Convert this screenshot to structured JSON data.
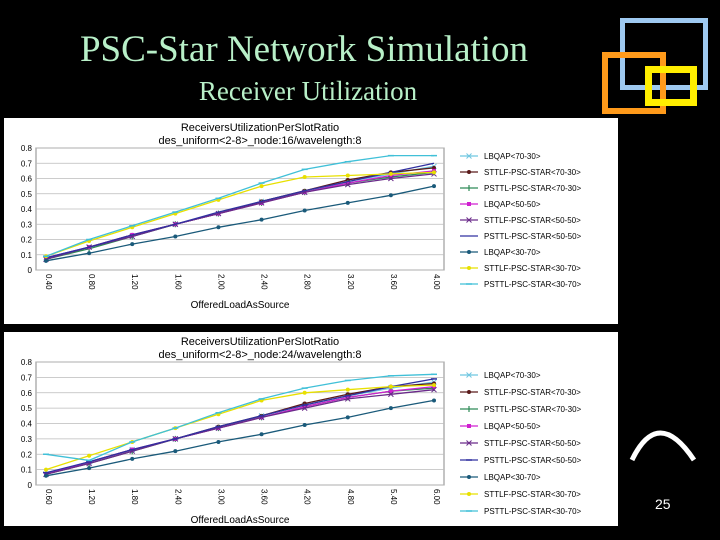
{
  "slide": {
    "title": "PSC-Star Network Simulation",
    "subtitle": "Receiver Utilization",
    "page_number": "25",
    "colors": {
      "background": "#000000",
      "title": "#b8f0c8",
      "deco_blue": "#9ec9f0",
      "deco_orange": "#ff9a1a",
      "deco_yellow": "#ffee00"
    }
  },
  "chart_data": [
    {
      "type": "line",
      "title": "ReceiversUtilizationPerSlotRatio",
      "subtitle": "des_uniform<2-8>_node:16/wavelength:8",
      "xlabel": "OfferedLoadAsSource",
      "ylabel": "",
      "x": [
        "0.40",
        "0.80",
        "1.20",
        "1.60",
        "2.00",
        "2.40",
        "2.80",
        "3.20",
        "3.60",
        "4.00"
      ],
      "ylim": [
        0,
        0.8
      ],
      "yticks": [
        "0",
        "0.1",
        "0.2",
        "0.3",
        "0.4",
        "0.5",
        "0.6",
        "0.7",
        "0.8"
      ],
      "grid": true,
      "legend": "right",
      "series": [
        {
          "name": "LBQAP<70-30>",
          "color": "#6ec6e0",
          "marker": "x",
          "values": [
            0.08,
            0.15,
            0.22,
            0.3,
            0.37,
            0.45,
            0.51,
            0.58,
            0.63,
            0.68
          ]
        },
        {
          "name": "STTLF-PSC-STAR<70-30>",
          "color": "#5a1a1a",
          "marker": "dot",
          "values": [
            0.07,
            0.15,
            0.23,
            0.3,
            0.37,
            0.45,
            0.52,
            0.59,
            0.64,
            0.67
          ]
        },
        {
          "name": "PSTTL-PSC-STAR<70-30>",
          "color": "#2e8b57",
          "marker": "bar",
          "values": [
            0.07,
            0.14,
            0.22,
            0.3,
            0.37,
            0.44,
            0.51,
            0.57,
            0.61,
            0.64
          ]
        },
        {
          "name": "LBQAP<50-50>",
          "color": "#d020d0",
          "marker": "square",
          "values": [
            0.08,
            0.15,
            0.23,
            0.3,
            0.37,
            0.44,
            0.51,
            0.57,
            0.62,
            0.65
          ]
        },
        {
          "name": "STTLF-PSC-STAR<50-50>",
          "color": "#6a2a8a",
          "marker": "x",
          "values": [
            0.07,
            0.15,
            0.22,
            0.3,
            0.37,
            0.44,
            0.51,
            0.56,
            0.6,
            0.63
          ]
        },
        {
          "name": "PSTTL-PSC-STAR<50-50>",
          "color": "#3030a0",
          "marker": "none",
          "values": [
            0.08,
            0.15,
            0.23,
            0.3,
            0.38,
            0.45,
            0.52,
            0.58,
            0.64,
            0.7
          ]
        },
        {
          "name": "LBQAP<30-70>",
          "color": "#1a5a7a",
          "marker": "dot",
          "values": [
            0.06,
            0.11,
            0.17,
            0.22,
            0.28,
            0.33,
            0.39,
            0.44,
            0.49,
            0.55
          ]
        },
        {
          "name": "STTLF-PSC-STAR<30-70>",
          "color": "#e8e000",
          "marker": "dot",
          "values": [
            0.09,
            0.19,
            0.28,
            0.37,
            0.46,
            0.55,
            0.61,
            0.62,
            0.63,
            0.64
          ]
        },
        {
          "name": "PSTTL-PSC-STAR<30-70>",
          "color": "#40c0d8",
          "marker": "dash",
          "values": [
            0.09,
            0.2,
            0.29,
            0.38,
            0.47,
            0.57,
            0.66,
            0.71,
            0.75,
            0.75
          ]
        }
      ]
    },
    {
      "type": "line",
      "title": "ReceiversUtilizationPerSlotRatio",
      "subtitle": "des_uniform<2-8>_node:24/wavelength:8",
      "xlabel": "OfferedLoadAsSource",
      "ylabel": "",
      "x": [
        "0.60",
        "1.20",
        "1.80",
        "2.40",
        "3.00",
        "3.60",
        "4.20",
        "4.80",
        "5.40",
        "6.00"
      ],
      "ylim": [
        0,
        0.8
      ],
      "yticks": [
        "0",
        "0.1",
        "0.2",
        "0.3",
        "0.4",
        "0.5",
        "0.6",
        "0.7",
        "0.8"
      ],
      "grid": true,
      "legend": "right",
      "series": [
        {
          "name": "LBQAP<70-30>",
          "color": "#6ec6e0",
          "marker": "x",
          "values": [
            0.07,
            0.15,
            0.23,
            0.3,
            0.37,
            0.45,
            0.52,
            0.58,
            0.63,
            0.67
          ]
        },
        {
          "name": "STTLF-PSC-STAR<70-30>",
          "color": "#5a1a1a",
          "marker": "dot",
          "values": [
            0.07,
            0.15,
            0.23,
            0.3,
            0.38,
            0.45,
            0.53,
            0.59,
            0.64,
            0.66
          ]
        },
        {
          "name": "PSTTL-PSC-STAR<70-30>",
          "color": "#2e8b57",
          "marker": "bar",
          "values": [
            0.07,
            0.14,
            0.22,
            0.3,
            0.37,
            0.44,
            0.51,
            0.57,
            0.61,
            0.63
          ]
        },
        {
          "name": "LBQAP<50-50>",
          "color": "#d020d0",
          "marker": "square",
          "values": [
            0.07,
            0.15,
            0.23,
            0.3,
            0.37,
            0.44,
            0.51,
            0.57,
            0.61,
            0.64
          ]
        },
        {
          "name": "STTLF-PSC-STAR<50-50>",
          "color": "#6a2a8a",
          "marker": "x",
          "values": [
            0.07,
            0.14,
            0.22,
            0.3,
            0.37,
            0.44,
            0.5,
            0.56,
            0.59,
            0.62
          ]
        },
        {
          "name": "PSTTL-PSC-STAR<50-50>",
          "color": "#3030a0",
          "marker": "dash",
          "values": [
            0.08,
            0.15,
            0.23,
            0.3,
            0.38,
            0.45,
            0.52,
            0.58,
            0.64,
            0.69
          ]
        },
        {
          "name": "LBQAP<30-70>",
          "color": "#1a5a7a",
          "marker": "dot",
          "values": [
            0.06,
            0.11,
            0.17,
            0.22,
            0.28,
            0.33,
            0.39,
            0.44,
            0.5,
            0.55
          ]
        },
        {
          "name": "STTLF-PSC-STAR<30-70>",
          "color": "#e8e000",
          "marker": "dot",
          "values": [
            0.1,
            0.19,
            0.28,
            0.37,
            0.46,
            0.55,
            0.6,
            0.62,
            0.64,
            0.65
          ]
        },
        {
          "name": "PSTTL-PSC-STAR<30-70>",
          "color": "#40c0d8",
          "marker": "dash",
          "values": [
            0.2,
            0.16,
            0.28,
            0.37,
            0.47,
            0.56,
            0.63,
            0.68,
            0.71,
            0.72
          ]
        }
      ]
    }
  ]
}
